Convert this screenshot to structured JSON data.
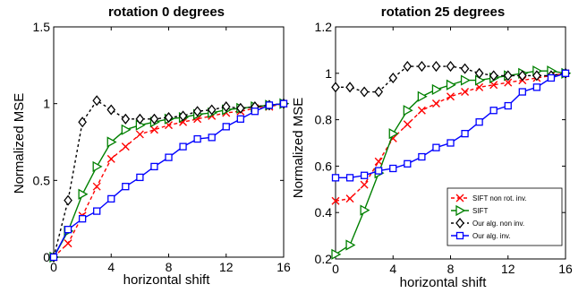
{
  "chart_data": [
    {
      "type": "line",
      "title": "rotation 0 degrees",
      "xlabel": "horizontal shift",
      "ylabel": "Normalized MSE",
      "xlim": [
        0,
        16
      ],
      "ylim": [
        0,
        1.5
      ],
      "xticks": [
        0,
        4,
        8,
        12,
        16
      ],
      "yticks": [
        0,
        0.5,
        1,
        1.5
      ],
      "ytick_labels": [
        "0",
        "0.5",
        "1",
        "1.5"
      ],
      "grid": false,
      "legend": "none",
      "x": [
        0,
        1,
        2,
        3,
        4,
        5,
        6,
        7,
        8,
        9,
        10,
        11,
        12,
        13,
        14,
        15,
        16
      ],
      "series": [
        {
          "name": "SIFT non rot. inv.",
          "color": "#ff0000",
          "dash": "4,3",
          "marker": "x",
          "values": [
            0.0,
            0.09,
            0.27,
            0.46,
            0.64,
            0.72,
            0.8,
            0.83,
            0.86,
            0.88,
            0.9,
            0.92,
            0.94,
            0.95,
            0.97,
            0.98,
            1.0
          ]
        },
        {
          "name": "SIFT",
          "color": "#008000",
          "dash": "",
          "marker": "triangle-right",
          "values": [
            0.0,
            0.17,
            0.41,
            0.59,
            0.75,
            0.83,
            0.86,
            0.88,
            0.9,
            0.91,
            0.93,
            0.94,
            0.96,
            0.97,
            0.98,
            0.99,
            1.0
          ]
        },
        {
          "name": "Our alg. non inv.",
          "color": "#000000",
          "dash": "3,3",
          "marker": "diamond",
          "values": [
            0.0,
            0.37,
            0.88,
            1.02,
            0.96,
            0.9,
            0.9,
            0.9,
            0.91,
            0.92,
            0.95,
            0.96,
            0.98,
            0.97,
            0.98,
            0.99,
            1.0
          ]
        },
        {
          "name": "Our alg. inv.",
          "color": "#0000ff",
          "dash": "",
          "marker": "square",
          "values": [
            0.0,
            0.18,
            0.25,
            0.3,
            0.38,
            0.46,
            0.52,
            0.59,
            0.65,
            0.72,
            0.77,
            0.78,
            0.85,
            0.9,
            0.95,
            0.99,
            1.0
          ]
        }
      ]
    },
    {
      "type": "line",
      "title": "rotation 25 degrees",
      "xlabel": "horizontal shift",
      "ylabel": "Normalized MSE",
      "xlim": [
        0,
        16
      ],
      "ylim": [
        0.2,
        1.2
      ],
      "xticks": [
        0,
        4,
        8,
        12,
        16
      ],
      "yticks": [
        0.2,
        0.4,
        0.6,
        0.8,
        1.0,
        1.2
      ],
      "ytick_labels": [
        "0.2",
        "0.4",
        "0.6",
        "0.8",
        "1",
        "1.2"
      ],
      "grid": false,
      "legend": "bottom-right",
      "x": [
        0,
        1,
        2,
        3,
        4,
        5,
        6,
        7,
        8,
        9,
        10,
        11,
        12,
        13,
        14,
        15,
        16
      ],
      "series": [
        {
          "name": "SIFT non rot. inv.",
          "color": "#ff0000",
          "dash": "4,3",
          "marker": "x",
          "values": [
            0.45,
            0.46,
            0.52,
            0.62,
            0.72,
            0.78,
            0.84,
            0.87,
            0.9,
            0.92,
            0.94,
            0.95,
            0.96,
            0.97,
            0.98,
            0.99,
            1.0
          ]
        },
        {
          "name": "SIFT",
          "color": "#008000",
          "dash": "",
          "marker": "triangle-right",
          "values": [
            0.22,
            0.26,
            0.41,
            0.57,
            0.74,
            0.84,
            0.9,
            0.93,
            0.95,
            0.97,
            0.97,
            0.98,
            0.99,
            1.0,
            1.01,
            1.01,
            1.0
          ]
        },
        {
          "name": "Our alg. non inv.",
          "color": "#000000",
          "dash": "3,3",
          "marker": "diamond",
          "values": [
            0.94,
            0.94,
            0.92,
            0.92,
            0.98,
            1.03,
            1.03,
            1.03,
            1.03,
            1.02,
            1.0,
            0.99,
            0.99,
            0.99,
            0.99,
            0.99,
            1.0
          ]
        },
        {
          "name": "Our alg. inv.",
          "color": "#0000ff",
          "dash": "",
          "marker": "square",
          "values": [
            0.55,
            0.55,
            0.56,
            0.58,
            0.59,
            0.61,
            0.64,
            0.68,
            0.7,
            0.74,
            0.79,
            0.84,
            0.86,
            0.92,
            0.94,
            0.98,
            1.0
          ]
        }
      ]
    }
  ]
}
